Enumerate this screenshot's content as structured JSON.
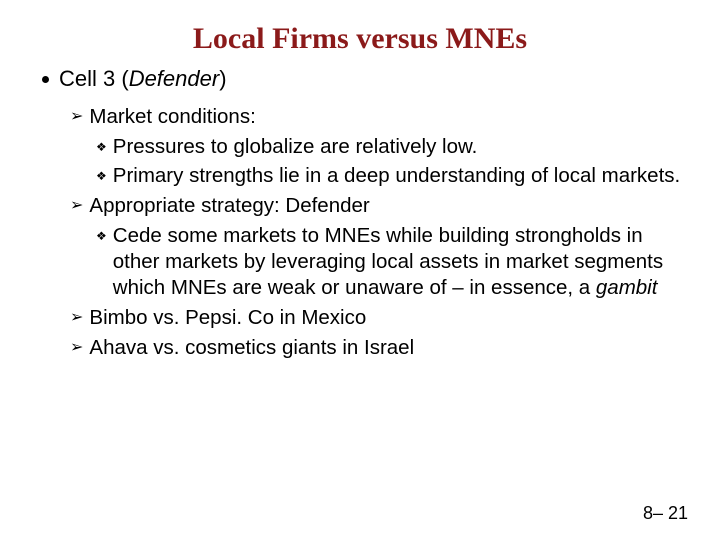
{
  "title": "Local Firms versus MNEs",
  "level1": {
    "prefix": "Cell 3 (",
    "italic": "Defender",
    "suffix": ")"
  },
  "level2_1": "Market conditions:",
  "level3_1": "Pressures to globalize are relatively low.",
  "level3_2": "Primary strengths lie in a deep understanding of local markets.",
  "level2_2": "Appropriate strategy: Defender",
  "level3_3_prefix": "Cede some markets to MNEs while building strongholds in other markets by leveraging local assets in market segments which MNEs are weak or unaware of – in essence, a ",
  "level3_3_italic": "gambit",
  "level2_3": "Bimbo vs. Pepsi. Co in Mexico",
  "level2_4": "Ahava vs. cosmetics giants in Israel",
  "pagenum": "8– 21",
  "bullets": {
    "chevron": "➢",
    "diamond": "❖"
  }
}
